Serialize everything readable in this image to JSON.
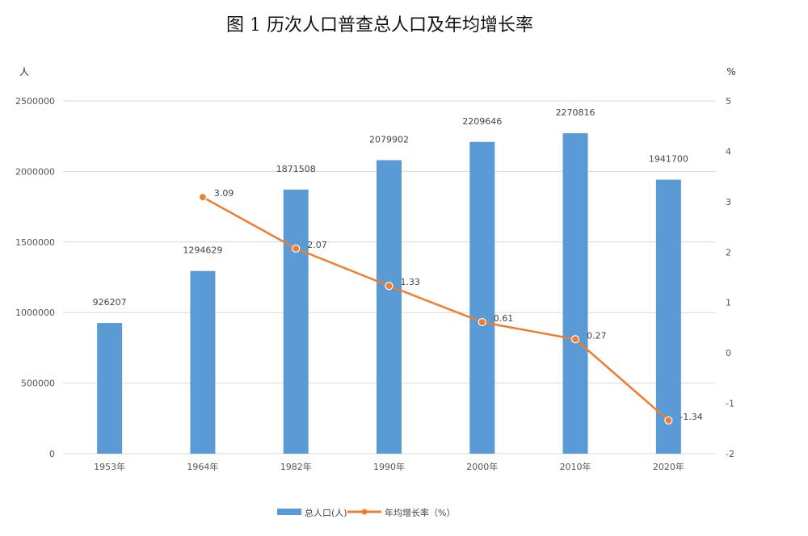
{
  "chart_data": {
    "type": "bar",
    "title": "图 1   历次人口普查总人口及年均增长率",
    "categories": [
      "1953年",
      "1964年",
      "1982年",
      "1990年",
      "2000年",
      "2010年",
      "2020年"
    ],
    "left_unit": "人",
    "right_unit": "%",
    "ylim_left": [
      0,
      2500000
    ],
    "ylim_right": [
      -2,
      5
    ],
    "yticks_left": [
      "0",
      "500000",
      "1000000",
      "1500000",
      "2000000",
      "2500000"
    ],
    "yticks_right": [
      "-2",
      "-1",
      "0",
      "1",
      "2",
      "3",
      "4",
      "5"
    ],
    "grid": true,
    "legend_position": "bottom",
    "series": [
      {
        "name": "总人口(人)",
        "type": "bar",
        "axis": "left",
        "color": "#5b9bd5",
        "values": [
          926207,
          1294629,
          1871508,
          2079902,
          2209646,
          2270816,
          1941700
        ],
        "labels": [
          "926207",
          "1294629",
          "1871508",
          "2079902",
          "2209646",
          "2270816",
          "1941700"
        ]
      },
      {
        "name": "年均增长率（%）",
        "type": "line",
        "axis": "right",
        "color": "#ed7d31",
        "values": [
          null,
          3.09,
          2.07,
          1.33,
          0.61,
          0.27,
          -1.34
        ],
        "labels": [
          "",
          "3.09",
          "2.07",
          "1.33",
          "0.61",
          "0.27",
          "-1.34"
        ]
      }
    ]
  }
}
